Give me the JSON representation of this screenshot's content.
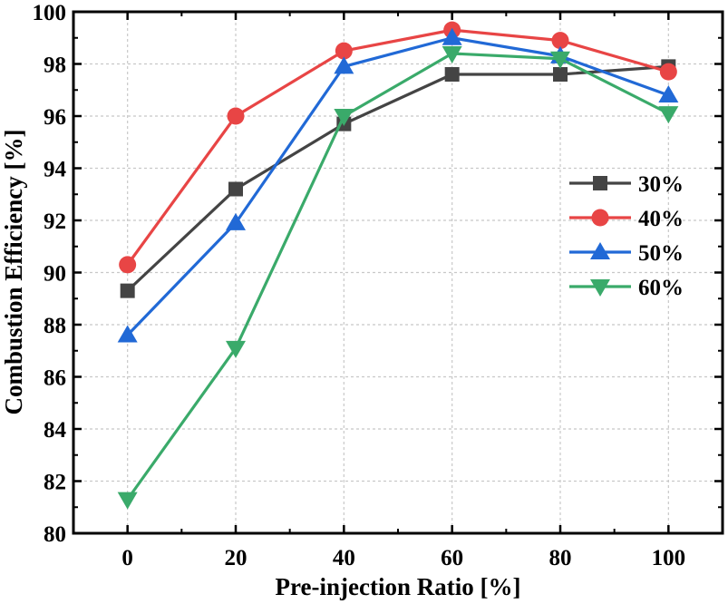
{
  "chart_data": {
    "type": "line",
    "title": "",
    "xlabel": "Pre-injection Ratio [%]",
    "ylabel": "Combustion Efficiency [%]",
    "x": [
      0,
      20,
      40,
      60,
      80,
      100
    ],
    "xlim": [
      -10,
      110
    ],
    "ylim": [
      80,
      100
    ],
    "xticks": [
      0,
      20,
      40,
      60,
      80,
      100
    ],
    "yticks": [
      80,
      82,
      84,
      86,
      88,
      90,
      92,
      94,
      96,
      98,
      100
    ],
    "grid": true,
    "legend_position": "right",
    "series": [
      {
        "name": "30%",
        "marker": "square",
        "color": "#444444",
        "values": [
          89.3,
          93.2,
          95.7,
          97.6,
          97.6,
          97.9
        ]
      },
      {
        "name": "40%",
        "marker": "circle",
        "color": "#e84545",
        "values": [
          90.3,
          96.0,
          98.5,
          99.3,
          98.9,
          97.7
        ]
      },
      {
        "name": "50%",
        "marker": "triangle-up",
        "color": "#2169d6",
        "values": [
          87.6,
          91.9,
          97.9,
          99.0,
          98.3,
          96.8
        ]
      },
      {
        "name": "60%",
        "marker": "triangle-down",
        "color": "#3aaa6a",
        "values": [
          81.3,
          87.1,
          96.0,
          98.4,
          98.2,
          96.1
        ]
      }
    ]
  }
}
